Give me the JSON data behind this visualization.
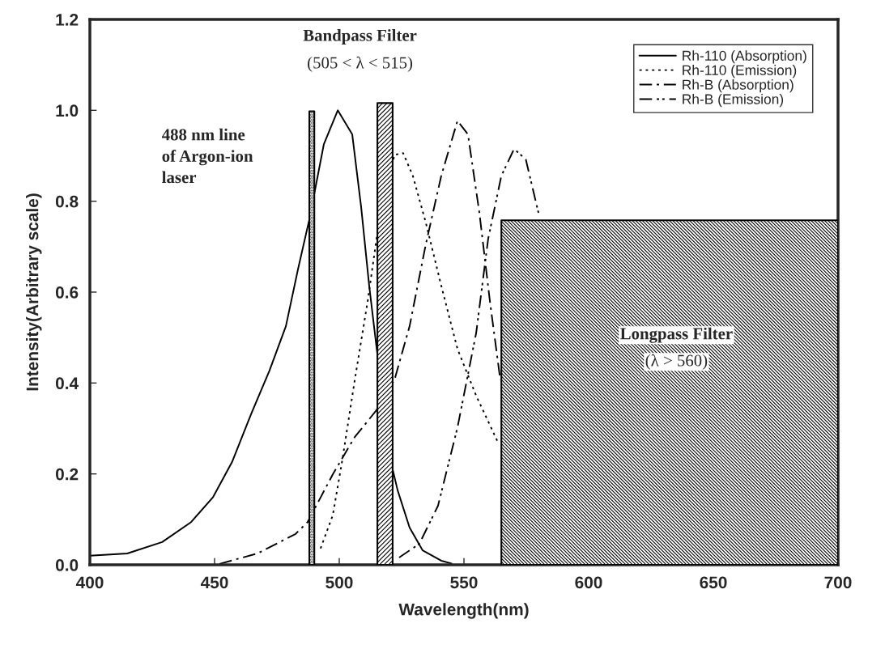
{
  "chart_data": {
    "type": "line",
    "xlabel": "Wavelength(nm)",
    "ylabel": "Intensity(Arbitrary scale)",
    "xlim": [
      400,
      700
    ],
    "xticks": [
      400,
      450,
      500,
      550,
      600,
      650,
      700
    ],
    "ylim": [
      0,
      1.2
    ],
    "yticks": [
      {
        "value": 0,
        "label": "0.0"
      },
      0.2,
      0.4,
      0.6,
      0.8,
      {
        "value": 1,
        "label": "1.0"
      },
      1.2
    ],
    "grid": false,
    "legend": "top right",
    "marker": "none",
    "series": [
      {
        "type": "area",
        "color": "#000000",
        "x": [
          488,
          488,
          490,
          490
        ],
        "values": [
          0,
          0.998,
          0.998,
          0
        ]
      },
      {
        "type": "area",
        "color": "#000000",
        "x": [
          515.3,
          515.3,
          521.4,
          521.4
        ],
        "values": [
          0,
          1.016,
          1.016,
          0
        ]
      },
      {
        "type": "area",
        "color": "#000000",
        "x": [
          565,
          565,
          700,
          700
        ],
        "values": [
          0,
          0.758,
          0.758,
          0
        ]
      },
      {
        "name": "Rh-110 (Absorption)",
        "color": "#000000",
        "line_style": "solid",
        "x": [
          400,
          415,
          429,
          440.6,
          449.4,
          457,
          464.6,
          472,
          478.6,
          483.4,
          488,
          493.8,
          499.4,
          505.2,
          508.8,
          512,
          515.3,
          521.4,
          523.4,
          528.2,
          533.4,
          540.9,
          545
        ],
        "values": [
          0.02,
          0.025,
          0.05,
          0.094,
          0.149,
          0.226,
          0.331,
          0.427,
          0.525,
          0.649,
          0.76,
          0.925,
          1.0,
          0.947,
          0.786,
          0.614,
          0.462,
          0.21,
          0.164,
          0.082,
          0.032,
          0.009,
          0.003
        ]
      },
      {
        "name": "Rh-110 (Emission)",
        "color": "#000000",
        "line_style": "dotted",
        "x": [
          492.5,
          497.4,
          501.3,
          506.2,
          511.4,
          515.3,
          522.1,
          525.6,
          529.5,
          534.7,
          540.9,
          547.4,
          554.9,
          563.6
        ],
        "values": [
          0.036,
          0.109,
          0.233,
          0.406,
          0.58,
          0.731,
          0.902,
          0.906,
          0.856,
          0.753,
          0.614,
          0.475,
          0.372,
          0.27
        ]
      },
      {
        "name": "Rh-B (Absorption)",
        "color": "#000000",
        "line_style": "dashdot",
        "x": [
          452,
          467.2,
          482.5,
          487.3,
          497.4,
          506.2,
          514.6,
          522.1,
          528.2,
          534.7,
          540.9,
          547.4,
          551.6,
          556.2,
          560.4,
          564.6
        ],
        "values": [
          0.002,
          0.025,
          0.068,
          0.094,
          0.199,
          0.281,
          0.338,
          0.406,
          0.525,
          0.705,
          0.856,
          0.977,
          0.947,
          0.774,
          0.58,
          0.406
        ]
      },
      {
        "name": "Rh-B (Emission)",
        "color": "#000000",
        "line_style": "dashdotdot",
        "x": [
          524,
          532.1,
          539.6,
          547.4,
          554.9,
          559.7,
          565,
          570.1,
          574.8,
          580.2
        ],
        "values": [
          0.016,
          0.046,
          0.13,
          0.302,
          0.51,
          0.717,
          0.856,
          0.915,
          0.892,
          0.767
        ]
      }
    ],
    "annotations": [
      "488 nm line\nof Argon-ion\nlaser",
      "Bandpass Filter",
      "(505 < λ < 515)",
      "Longpass Filter",
      "(λ > 560)"
    ]
  }
}
